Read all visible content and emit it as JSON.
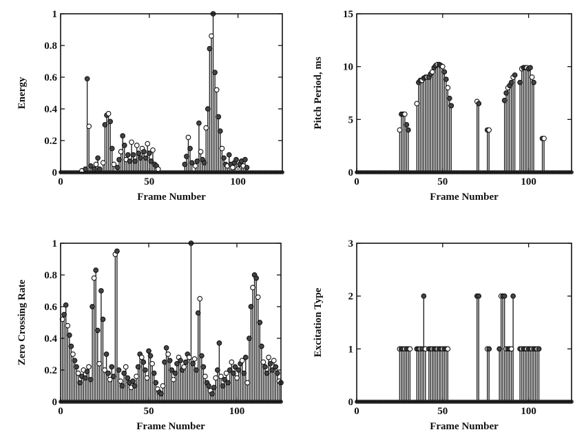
{
  "chart_data": [
    {
      "type": "stem",
      "title": "",
      "xlabel": "Frame Number",
      "ylabel": "Energy",
      "xlim": [
        0,
        125
      ],
      "ylim": [
        0,
        1
      ],
      "xticks": [
        0,
        50,
        100
      ],
      "yticks": [
        0,
        0.2,
        0.4,
        0.6,
        0.8,
        1
      ],
      "ytick_labels": [
        "0",
        "0.2",
        "0.4",
        "0.6",
        "0.8",
        "1"
      ],
      "grid": false,
      "points": [
        [
          12,
          0.01
        ],
        [
          14,
          0.02
        ],
        [
          15,
          0.59
        ],
        [
          16,
          0.29
        ],
        [
          17,
          0.04
        ],
        [
          19,
          0.02
        ],
        [
          20,
          0.05
        ],
        [
          21,
          0.09
        ],
        [
          22,
          0.02
        ],
        [
          24,
          0.06
        ],
        [
          25,
          0.3
        ],
        [
          26,
          0.36
        ],
        [
          27,
          0.37
        ],
        [
          28,
          0.32
        ],
        [
          29,
          0.15
        ],
        [
          30,
          0.05
        ],
        [
          32,
          0.03
        ],
        [
          33,
          0.08
        ],
        [
          34,
          0.13
        ],
        [
          35,
          0.23
        ],
        [
          36,
          0.17
        ],
        [
          37,
          0.08
        ],
        [
          38,
          0.11
        ],
        [
          39,
          0.07
        ],
        [
          40,
          0.19
        ],
        [
          41,
          0.11
        ],
        [
          42,
          0.07
        ],
        [
          43,
          0.17
        ],
        [
          44,
          0.12
        ],
        [
          45,
          0.09
        ],
        [
          46,
          0.15
        ],
        [
          47,
          0.13
        ],
        [
          48,
          0.09
        ],
        [
          49,
          0.18
        ],
        [
          50,
          0.12
        ],
        [
          51,
          0.07
        ],
        [
          52,
          0.14
        ],
        [
          53,
          0.05
        ],
        [
          54,
          0.04
        ],
        [
          55,
          0.02
        ],
        [
          70,
          0.05
        ],
        [
          71,
          0.1
        ],
        [
          72,
          0.22
        ],
        [
          73,
          0.15
        ],
        [
          74,
          0.06
        ],
        [
          76,
          0.04
        ],
        [
          77,
          0.07
        ],
        [
          78,
          0.31
        ],
        [
          79,
          0.13
        ],
        [
          80,
          0.08
        ],
        [
          81,
          0.06
        ],
        [
          82,
          0.28
        ],
        [
          83,
          0.4
        ],
        [
          84,
          0.78
        ],
        [
          85,
          0.86
        ],
        [
          86,
          1.0
        ],
        [
          87,
          0.63
        ],
        [
          88,
          0.52
        ],
        [
          89,
          0.35
        ],
        [
          90,
          0.26
        ],
        [
          91,
          0.15
        ],
        [
          92,
          0.09
        ],
        [
          93,
          0.05
        ],
        [
          94,
          0.04
        ],
        [
          95,
          0.11
        ],
        [
          96,
          0.05
        ],
        [
          97,
          0.03
        ],
        [
          98,
          0.06
        ],
        [
          99,
          0.08
        ],
        [
          100,
          0.02
        ],
        [
          101,
          0.05
        ],
        [
          102,
          0.07
        ],
        [
          103,
          0.04
        ],
        [
          104,
          0.08
        ],
        [
          105,
          0.03
        ]
      ]
    },
    {
      "type": "stem",
      "title": "",
      "xlabel": "Frame Number",
      "ylabel": "Pitch Period, ms",
      "xlim": [
        0,
        125
      ],
      "ylim": [
        0,
        15
      ],
      "xticks": [
        0,
        50,
        100
      ],
      "yticks": [
        0,
        5,
        10,
        15
      ],
      "ytick_labels": [
        "0",
        "5",
        "10",
        "15"
      ],
      "grid": false,
      "points": [
        [
          25,
          4.0
        ],
        [
          26,
          5.5
        ],
        [
          27,
          5.5
        ],
        [
          28,
          5.5
        ],
        [
          29,
          4.5
        ],
        [
          30,
          4.0
        ],
        [
          35,
          6.5
        ],
        [
          36,
          8.5
        ],
        [
          37,
          8.7
        ],
        [
          38,
          8.7
        ],
        [
          39,
          8.9
        ],
        [
          40,
          9.0
        ],
        [
          41,
          9.0
        ],
        [
          42,
          9.0
        ],
        [
          43,
          9.3
        ],
        [
          44,
          9.5
        ],
        [
          45,
          9.9
        ],
        [
          46,
          10.1
        ],
        [
          47,
          10.2
        ],
        [
          48,
          10.2
        ],
        [
          49,
          10.1
        ],
        [
          50,
          10.0
        ],
        [
          51,
          9.5
        ],
        [
          52,
          8.8
        ],
        [
          53,
          8.0
        ],
        [
          54,
          7.0
        ],
        [
          55,
          6.3
        ],
        [
          70,
          6.7
        ],
        [
          71,
          6.5
        ],
        [
          76,
          4.0
        ],
        [
          77,
          4.0
        ],
        [
          86,
          6.8
        ],
        [
          87,
          7.5
        ],
        [
          88,
          8.0
        ],
        [
          89,
          8.2
        ],
        [
          90,
          8.5
        ],
        [
          91,
          9.0
        ],
        [
          92,
          9.2
        ],
        [
          95,
          8.5
        ],
        [
          96,
          9.8
        ],
        [
          97,
          9.9
        ],
        [
          98,
          9.9
        ],
        [
          99,
          9.9
        ],
        [
          100,
          9.8
        ],
        [
          101,
          9.9
        ],
        [
          102,
          9.0
        ],
        [
          103,
          8.5
        ],
        [
          108,
          3.2
        ],
        [
          109,
          3.2
        ]
      ]
    },
    {
      "type": "stem",
      "title": "",
      "xlabel": "Frame Number",
      "ylabel": "Zero Crossing Rate",
      "xlim": [
        0,
        125
      ],
      "ylim": [
        0,
        1
      ],
      "xticks": [
        0,
        50,
        100
      ],
      "yticks": [
        0,
        0.2,
        0.4,
        0.6,
        0.8,
        1
      ],
      "ytick_labels": [
        "0",
        "0.2",
        "0.4",
        "0.6",
        "0.8",
        "1"
      ],
      "grid": false,
      "points": [
        [
          1,
          0.52
        ],
        [
          2,
          0.55
        ],
        [
          3,
          0.61
        ],
        [
          4,
          0.48
        ],
        [
          5,
          0.42
        ],
        [
          6,
          0.35
        ],
        [
          7,
          0.3
        ],
        [
          8,
          0.26
        ],
        [
          9,
          0.22
        ],
        [
          10,
          0.18
        ],
        [
          11,
          0.12
        ],
        [
          12,
          0.16
        ],
        [
          13,
          0.2
        ],
        [
          14,
          0.15
        ],
        [
          15,
          0.19
        ],
        [
          16,
          0.22
        ],
        [
          17,
          0.14
        ],
        [
          18,
          0.6
        ],
        [
          19,
          0.78
        ],
        [
          20,
          0.83
        ],
        [
          21,
          0.45
        ],
        [
          22,
          0.24
        ],
        [
          23,
          0.7
        ],
        [
          24,
          0.52
        ],
        [
          25,
          0.2
        ],
        [
          26,
          0.3
        ],
        [
          27,
          0.18
        ],
        [
          28,
          0.14
        ],
        [
          29,
          0.22
        ],
        [
          30,
          0.16
        ],
        [
          31,
          0.93
        ],
        [
          32,
          0.95
        ],
        [
          33,
          0.2
        ],
        [
          34,
          0.13
        ],
        [
          35,
          0.1
        ],
        [
          36,
          0.18
        ],
        [
          37,
          0.22
        ],
        [
          38,
          0.15
        ],
        [
          39,
          0.12
        ],
        [
          40,
          0.09
        ],
        [
          41,
          0.13
        ],
        [
          42,
          0.1
        ],
        [
          43,
          0.16
        ],
        [
          44,
          0.22
        ],
        [
          45,
          0.3
        ],
        [
          46,
          0.28
        ],
        [
          47,
          0.25
        ],
        [
          48,
          0.2
        ],
        [
          49,
          0.15
        ],
        [
          50,
          0.32
        ],
        [
          51,
          0.29
        ],
        [
          52,
          0.24
        ],
        [
          53,
          0.18
        ],
        [
          54,
          0.12
        ],
        [
          55,
          0.08
        ],
        [
          56,
          0.06
        ],
        [
          57,
          0.05
        ],
        [
          58,
          0.1
        ],
        [
          59,
          0.25
        ],
        [
          60,
          0.34
        ],
        [
          61,
          0.3
        ],
        [
          62,
          0.26
        ],
        [
          63,
          0.2
        ],
        [
          64,
          0.14
        ],
        [
          65,
          0.18
        ],
        [
          66,
          0.24
        ],
        [
          67,
          0.28
        ],
        [
          68,
          0.26
        ],
        [
          69,
          0.2
        ],
        [
          70,
          0.22
        ],
        [
          71,
          0.25
        ],
        [
          72,
          0.3
        ],
        [
          73,
          0.28
        ],
        [
          74,
          1.0
        ],
        [
          75,
          0.24
        ],
        [
          76,
          0.27
        ],
        [
          77,
          0.2
        ],
        [
          78,
          0.56
        ],
        [
          79,
          0.65
        ],
        [
          80,
          0.29
        ],
        [
          81,
          0.22
        ],
        [
          82,
          0.16
        ],
        [
          83,
          0.12
        ],
        [
          84,
          0.1
        ],
        [
          85,
          0.07
        ],
        [
          86,
          0.05
        ],
        [
          87,
          0.09
        ],
        [
          88,
          0.15
        ],
        [
          89,
          0.2
        ],
        [
          90,
          0.37
        ],
        [
          91,
          0.16
        ],
        [
          92,
          0.1
        ],
        [
          93,
          0.14
        ],
        [
          94,
          0.18
        ],
        [
          95,
          0.12
        ],
        [
          96,
          0.2
        ],
        [
          97,
          0.25
        ],
        [
          98,
          0.18
        ],
        [
          99,
          0.22
        ],
        [
          100,
          0.15
        ],
        [
          101,
          0.2
        ],
        [
          102,
          0.24
        ],
        [
          103,
          0.26
        ],
        [
          104,
          0.18
        ],
        [
          105,
          0.28
        ],
        [
          106,
          0.12
        ],
        [
          107,
          0.4
        ],
        [
          108,
          0.6
        ],
        [
          109,
          0.72
        ],
        [
          110,
          0.8
        ],
        [
          111,
          0.78
        ],
        [
          112,
          0.66
        ],
        [
          113,
          0.5
        ],
        [
          114,
          0.35
        ],
        [
          115,
          0.25
        ],
        [
          116,
          0.22
        ],
        [
          117,
          0.18
        ],
        [
          118,
          0.28
        ],
        [
          119,
          0.24
        ],
        [
          120,
          0.2
        ],
        [
          121,
          0.26
        ],
        [
          122,
          0.22
        ],
        [
          123,
          0.18
        ],
        [
          124,
          0.13
        ],
        [
          125,
          0.12
        ]
      ]
    },
    {
      "type": "stem",
      "title": "",
      "xlabel": "Frame Number",
      "ylabel": "Excitation Type",
      "xlim": [
        0,
        125
      ],
      "ylim": [
        0,
        3
      ],
      "xticks": [
        0,
        50,
        100
      ],
      "yticks": [
        0,
        1,
        2,
        3
      ],
      "ytick_labels": [
        "0",
        "1",
        "2",
        "3"
      ],
      "grid": false,
      "points": [
        [
          25,
          1
        ],
        [
          26,
          1
        ],
        [
          27,
          1
        ],
        [
          28,
          1
        ],
        [
          29,
          1
        ],
        [
          30,
          1
        ],
        [
          31,
          1
        ],
        [
          35,
          1
        ],
        [
          36,
          1
        ],
        [
          37,
          1
        ],
        [
          38,
          1
        ],
        [
          39,
          2
        ],
        [
          40,
          1
        ],
        [
          42,
          1
        ],
        [
          43,
          1
        ],
        [
          44,
          1
        ],
        [
          45,
          1
        ],
        [
          46,
          1
        ],
        [
          47,
          1
        ],
        [
          48,
          1
        ],
        [
          49,
          1
        ],
        [
          50,
          1
        ],
        [
          51,
          1
        ],
        [
          52,
          1
        ],
        [
          53,
          1
        ],
        [
          70,
          2
        ],
        [
          71,
          2
        ],
        [
          76,
          1
        ],
        [
          77,
          1
        ],
        [
          83,
          1
        ],
        [
          84,
          2
        ],
        [
          85,
          2
        ],
        [
          86,
          2
        ],
        [
          87,
          1
        ],
        [
          88,
          1
        ],
        [
          89,
          1
        ],
        [
          90,
          1
        ],
        [
          91,
          2
        ],
        [
          95,
          1
        ],
        [
          96,
          1
        ],
        [
          97,
          1
        ],
        [
          98,
          1
        ],
        [
          99,
          1
        ],
        [
          100,
          1
        ],
        [
          101,
          1
        ],
        [
          102,
          1
        ],
        [
          103,
          1
        ],
        [
          104,
          1
        ],
        [
          105,
          1
        ],
        [
          106,
          1
        ]
      ]
    }
  ]
}
